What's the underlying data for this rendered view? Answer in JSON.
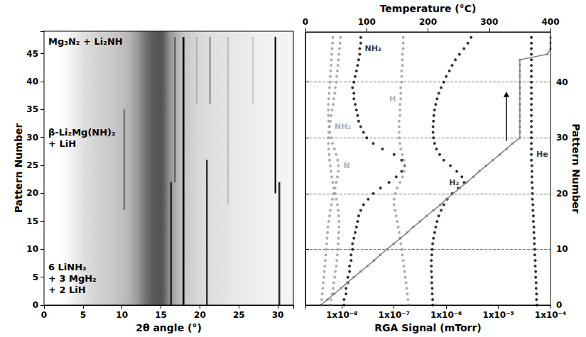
{
  "chart_data": [
    {
      "type": "image",
      "xlabel": "2θ angle (°)",
      "ylabel": "Pattern Number",
      "xlim": [
        0,
        32
      ],
      "xticks": [
        0,
        5,
        10,
        15,
        20,
        25,
        30
      ],
      "ylim": [
        0,
        49
      ],
      "yticks": [
        0,
        5,
        10,
        15,
        20,
        25,
        30,
        35,
        40,
        45
      ],
      "grid": false,
      "background": {
        "two_theta": [
          0,
          2,
          3,
          4,
          5,
          6,
          7,
          8,
          9,
          10,
          11,
          12,
          13,
          14,
          15,
          15.5,
          16,
          17,
          18,
          19,
          20,
          22,
          24,
          26,
          28,
          30,
          32
        ],
        "intensity": [
          0,
          0,
          0.03,
          0.08,
          0.12,
          0.15,
          0.18,
          0.2,
          0.22,
          0.25,
          0.3,
          0.4,
          0.55,
          0.65,
          0.68,
          0.6,
          0.45,
          0.3,
          0.22,
          0.18,
          0.15,
          0.12,
          0.1,
          0.08,
          0.06,
          0.05,
          0.04
        ]
      },
      "reflections": [
        {
          "two_theta": 10.3,
          "from": 17,
          "to": 35,
          "intensity": 0.55
        },
        {
          "two_theta": 16.3,
          "from": 0,
          "to": 22,
          "intensity": 0.85
        },
        {
          "two_theta": 16.8,
          "from": 22,
          "to": 48,
          "intensity": 0.6
        },
        {
          "two_theta": 17.9,
          "from": 0,
          "to": 48,
          "intensity": 1.0
        },
        {
          "two_theta": 19.6,
          "from": 36,
          "to": 48,
          "intensity": 0.3
        },
        {
          "two_theta": 20.9,
          "from": 0,
          "to": 26,
          "intensity": 0.8
        },
        {
          "two_theta": 21.3,
          "from": 36,
          "to": 48,
          "intensity": 0.4
        },
        {
          "two_theta": 23.6,
          "from": 18,
          "to": 48,
          "intensity": 0.25
        },
        {
          "two_theta": 26.8,
          "from": 36,
          "to": 48,
          "intensity": 0.2
        },
        {
          "two_theta": 29.7,
          "from": 20,
          "to": 48,
          "intensity": 0.9
        },
        {
          "two_theta": 30.2,
          "from": 0,
          "to": 22,
          "intensity": 0.85
        }
      ],
      "annotations": [
        "Mg₃N₂ + Li₂NH",
        "β-Li₂Mg(NH)₂\n+ LiH",
        "6 LiNH₂\n+ 3 MgH₂\n+ 2 LiH"
      ]
    },
    {
      "type": "scatter",
      "xlabel": "RGA Signal (mTorr)",
      "x2label": "Temperature (°C)",
      "ylabel": "Pattern Number",
      "log": "x",
      "xlim": [
        2e-09,
        0.0001
      ],
      "xticks": [
        {
          "value": 1e-08,
          "label": "1x10⁻⁸"
        },
        {
          "value": 1e-07,
          "label": "1x10⁻⁷"
        },
        {
          "value": 1e-06,
          "label": "1x10⁻⁶"
        },
        {
          "value": 1e-05,
          "label": "1x10⁻⁵"
        },
        {
          "value": 0.0001,
          "label": "1x10⁻⁴"
        }
      ],
      "x2lim": [
        0,
        400
      ],
      "x2ticks": [
        0,
        100,
        200,
        300,
        400
      ],
      "ylim": [
        0,
        49
      ],
      "yticks": [
        0,
        10,
        20,
        30,
        40
      ],
      "grid": true,
      "y": [
        0,
        1,
        2,
        3,
        4,
        5,
        6,
        7,
        8,
        9,
        10,
        11,
        12,
        13,
        14,
        15,
        16,
        17,
        18,
        19,
        20,
        21,
        22,
        23,
        24,
        25,
        26,
        27,
        28,
        29,
        30,
        31,
        32,
        33,
        34,
        35,
        36,
        37,
        38,
        39,
        40,
        41,
        42,
        43,
        44,
        45,
        46,
        47,
        48
      ],
      "series": [
        {
          "name": "NH₃",
          "color": "#000000",
          "marker": "circle",
          "values": [
            1.1e-08,
            1.1e-08,
            1.2e-08,
            1.2e-08,
            1.3e-08,
            1.3e-08,
            1.4e-08,
            1.4e-08,
            1.5e-08,
            1.5e-08,
            1.6e-08,
            1.6e-08,
            1.7e-08,
            1.8e-08,
            1.9e-08,
            2e-08,
            2.1e-08,
            2.3e-08,
            2.6e-08,
            3.2e-08,
            4e-08,
            5.5e-08,
            8e-08,
            1.1e-07,
            1.4e-07,
            1.6e-07,
            1.4e-07,
            1e-07,
            6e-08,
            4e-08,
            3e-08,
            2.6e-08,
            2.3e-08,
            2.1e-08,
            2e-08,
            1.9e-08,
            1.8e-08,
            1.7e-08,
            1.7e-08,
            1.6e-08,
            1.7e-08,
            1.8e-08,
            1.9e-08,
            2e-08,
            2.1e-08,
            2.2e-08,
            2.2e-08,
            2.3e-08,
            2.3e-08
          ]
        },
        {
          "name": "NH₂",
          "color": "#9a9a9a",
          "marker": "circle",
          "values": [
            6e-09,
            6.2e-09,
            6.5e-09,
            6.8e-09,
            7e-09,
            7.3e-09,
            7.5e-09,
            7.8e-09,
            8e-09,
            8.2e-09,
            8.4e-09,
            8.5e-09,
            8.6e-09,
            8.7e-09,
            8.8e-09,
            8.8e-09,
            8.7e-09,
            8.5e-09,
            8.2e-09,
            7.8e-09,
            7.4e-09,
            7e-09,
            6.7e-09,
            6.4e-09,
            6.2e-09,
            6e-09,
            5.8e-09,
            5.7e-09,
            5.6e-09,
            5.5e-09,
            5.5e-09,
            5.6e-09,
            5.8e-09,
            6e-09,
            6.2e-09,
            6.5e-09,
            6.8e-09,
            7e-09,
            7.3e-09,
            7.5e-09,
            7.8e-09,
            8e-09,
            8.2e-09,
            8.4e-09,
            8.6e-09,
            8.8e-09,
            9e-09,
            9.2e-09,
            9.4e-09
          ]
        },
        {
          "name": "N",
          "color": "#9a9a9a",
          "marker": "circle",
          "values": [
            4e-09,
            4.1e-09,
            4.2e-09,
            4.3e-09,
            4.4e-09,
            4.5e-09,
            4.6e-09,
            4.7e-09,
            4.8e-09,
            4.9e-09,
            5e-09,
            5.1e-09,
            5.2e-09,
            5.3e-09,
            5.4e-09,
            5.6e-09,
            5.8e-09,
            6e-09,
            6.3e-09,
            6.6e-09,
            7e-09,
            7.4e-09,
            7.8e-09,
            8.2e-09,
            8.5e-09,
            8.6e-09,
            8.3e-09,
            7.8e-09,
            7.2e-09,
            6.6e-09,
            6.2e-09,
            5.9e-09,
            5.7e-09,
            5.6e-09,
            5.5e-09,
            5.5e-09,
            5.5e-09,
            5.6e-09,
            5.7e-09,
            5.8e-09,
            5.9e-09,
            6e-09,
            6.1e-09,
            6.2e-09,
            6.3e-09,
            6.4e-09,
            6.5e-09,
            6.6e-09,
            6.7e-09
          ]
        },
        {
          "name": "H",
          "color": "#9a9a9a",
          "marker": "circle",
          "values": [
            1.9e-07,
            1.85e-07,
            1.8e-07,
            1.75e-07,
            1.7e-07,
            1.65e-07,
            1.6e-07,
            1.55e-07,
            1.5e-07,
            1.45e-07,
            1.4e-07,
            1.35e-07,
            1.3e-07,
            1.25e-07,
            1.2e-07,
            1.15e-07,
            1.1e-07,
            1.05e-07,
            1e-07,
            1e-07,
            1.05e-07,
            1.15e-07,
            1.3e-07,
            1.45e-07,
            1.55e-07,
            1.6e-07,
            1.55e-07,
            1.45e-07,
            1.35e-07,
            1.3e-07,
            1.25e-07,
            1.25e-07,
            1.25e-07,
            1.25e-07,
            1.3e-07,
            1.3e-07,
            1.3e-07,
            1.35e-07,
            1.35e-07,
            1.35e-07,
            1.4e-07,
            1.4e-07,
            1.4e-07,
            1.45e-07,
            1.45e-07,
            1.45e-07,
            1.5e-07,
            1.5e-07,
            1.5e-07
          ]
        },
        {
          "name": "H₂",
          "color": "#000000",
          "marker": "circle",
          "values": [
            5.5e-07,
            5.5e-07,
            5.4e-07,
            5.4e-07,
            5.3e-07,
            5.3e-07,
            5.2e-07,
            5.2e-07,
            5.2e-07,
            5.3e-07,
            5.4e-07,
            5.5e-07,
            5.7e-07,
            6e-07,
            6.3e-07,
            6.7e-07,
            7.2e-07,
            8e-07,
            9e-07,
            1.05e-06,
            1.3e-06,
            1.7e-06,
            2.2e-06,
            2e-06,
            1.6e-06,
            1.2e-06,
            9e-07,
            7.5e-07,
            6.5e-07,
            6e-07,
            5.7e-07,
            5.6e-07,
            5.6e-07,
            5.7e-07,
            5.8e-07,
            6e-07,
            6.3e-07,
            6.7e-07,
            7.2e-07,
            8e-07,
            9e-07,
            1e-06,
            1.15e-06,
            1.3e-06,
            1.5e-06,
            1.8e-06,
            2.2e-06,
            2.6e-06,
            3e-06
          ]
        },
        {
          "name": "He",
          "color": "#000000",
          "marker": "circle",
          "values": [
            5.5e-05,
            5.4e-05,
            5.4e-05,
            5.3e-05,
            5.3e-05,
            5.2e-05,
            5.2e-05,
            5.1e-05,
            5.1e-05,
            5e-05,
            5e-05,
            4.9e-05,
            4.9e-05,
            4.8e-05,
            4.8e-05,
            4.7e-05,
            4.7e-05,
            4.6e-05,
            4.6e-05,
            4.5e-05,
            4.5e-05,
            4.5e-05,
            4.4e-05,
            4.4e-05,
            4.4e-05,
            4.4e-05,
            4.3e-05,
            4.3e-05,
            4.3e-05,
            4.3e-05,
            4.3e-05,
            4.3e-05,
            4.3e-05,
            4.3e-05,
            4.3e-05,
            4.3e-05,
            4.3e-05,
            4.3e-05,
            4.3e-05,
            4.3e-05,
            4.3e-05,
            4.3e-05,
            4.3e-05,
            4.3e-05,
            4.3e-05,
            4.3e-05,
            4.3e-05,
            4.3e-05,
            4.3e-05
          ]
        }
      ],
      "temperature": {
        "type": "line",
        "axis": "x2",
        "color": "#808080",
        "marker": "square",
        "line_style": "solid",
        "values": [
          25,
          36,
          47,
          58,
          68,
          79,
          90,
          101,
          112,
          122,
          133,
          144,
          155,
          166,
          176,
          187,
          198,
          209,
          220,
          230,
          241,
          252,
          263,
          274,
          284,
          295,
          306,
          317,
          328,
          338,
          350,
          350,
          350,
          350,
          350,
          350,
          350,
          350,
          350,
          350,
          350,
          350,
          350,
          350,
          350,
          395,
          400,
          400,
          400
        ]
      }
    }
  ]
}
